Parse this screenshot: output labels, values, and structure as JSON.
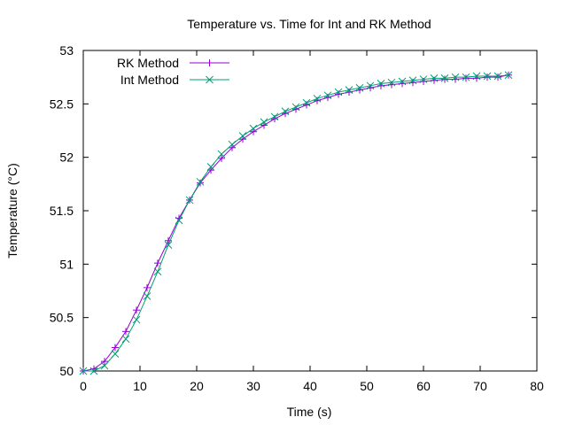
{
  "chart_data": {
    "type": "line",
    "title": "Temperature vs. Time for Int and RK Method",
    "xlabel": "Time (s)",
    "ylabel": "Temperature (°C)",
    "xlim": [
      0,
      80
    ],
    "ylim": [
      50,
      53
    ],
    "xticks": [
      0,
      10,
      20,
      30,
      40,
      50,
      60,
      70,
      80
    ],
    "xtick_labels": [
      "0",
      "10",
      "20",
      "30",
      "40",
      "50",
      "60",
      "70",
      "80"
    ],
    "yticks": [
      50,
      50.5,
      51,
      51.5,
      52,
      52.5,
      53
    ],
    "ytick_labels": [
      "50",
      "50.5",
      "51",
      "51.5",
      "52",
      "52.5",
      "53"
    ],
    "grid": false,
    "legend_position": "top-left",
    "series": [
      {
        "name": "RK Method",
        "color": "#9400d3",
        "marker": "plus",
        "x": [
          0,
          1.875,
          3.75,
          5.625,
          7.5,
          9.375,
          11.25,
          13.125,
          15,
          16.875,
          18.75,
          20.625,
          22.5,
          24.375,
          26.25,
          28.125,
          30,
          31.875,
          33.75,
          35.625,
          37.5,
          39.375,
          41.25,
          43.125,
          45,
          46.875,
          48.75,
          50.625,
          52.5,
          54.375,
          56.25,
          58.125,
          60,
          61.875,
          63.75,
          65.625,
          67.5,
          69.375,
          71.25,
          73.125,
          75
        ],
        "y": [
          50.0,
          50.02,
          50.09,
          50.22,
          50.37,
          50.57,
          50.78,
          51.01,
          51.22,
          51.43,
          51.6,
          51.76,
          51.88,
          51.99,
          52.09,
          52.17,
          52.24,
          52.3,
          52.36,
          52.41,
          52.45,
          52.49,
          52.53,
          52.56,
          52.59,
          52.61,
          52.63,
          52.65,
          52.67,
          52.68,
          52.69,
          52.7,
          52.71,
          52.72,
          52.73,
          52.73,
          52.74,
          52.74,
          52.75,
          52.75,
          52.77
        ]
      },
      {
        "name": "Int Method",
        "color": "#009e73",
        "marker": "cross",
        "x": [
          0,
          1.875,
          3.75,
          5.625,
          7.5,
          9.375,
          11.25,
          13.125,
          15,
          16.875,
          18.75,
          20.625,
          22.5,
          24.375,
          26.25,
          28.125,
          30,
          31.875,
          33.75,
          35.625,
          37.5,
          39.375,
          41.25,
          43.125,
          45,
          46.875,
          48.75,
          50.625,
          52.5,
          54.375,
          56.25,
          58.125,
          60,
          61.875,
          63.75,
          65.625,
          67.5,
          69.375,
          71.25,
          73.125,
          75
        ],
        "y": [
          50.0,
          50.0,
          50.05,
          50.16,
          50.3,
          50.48,
          50.7,
          50.93,
          51.18,
          51.41,
          51.6,
          51.77,
          51.91,
          52.03,
          52.12,
          52.2,
          52.27,
          52.33,
          52.38,
          52.43,
          52.47,
          52.51,
          52.55,
          52.58,
          52.61,
          52.63,
          52.65,
          52.67,
          52.69,
          52.7,
          52.71,
          52.72,
          52.73,
          52.74,
          52.74,
          52.75,
          52.75,
          52.76,
          52.76,
          52.76,
          52.77
        ]
      }
    ]
  }
}
